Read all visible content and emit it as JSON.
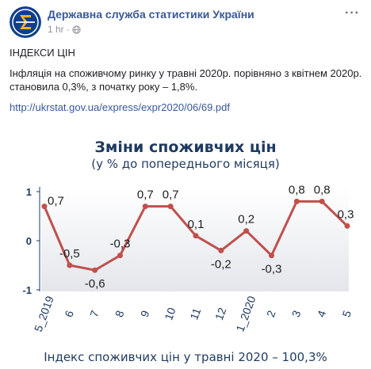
{
  "post": {
    "page_name": "Державна служба статистики України",
    "time": "1 hr",
    "dot": "·",
    "more": "···",
    "heading": "ІНДЕКСИ ЦІН",
    "body": "Інфляція на споживчому ринку у травні 2020р. порівняно з квітнем 2020р. становила 0,3%, з початку року – 1,8%.",
    "link": "http://ukrstat.gov.ua/express/expr2020/06/69.pdf",
    "colors": {
      "link": "#385898",
      "avatar_blue": "#0d3f8c",
      "avatar_gold": "#f2b21e"
    },
    "icons": {
      "globe": "globe-icon",
      "logo": "sigma-logo"
    }
  },
  "chart_data": {
    "type": "line",
    "title": "Зміни споживчих цін",
    "subtitle": "(у % до попереднього місяця)",
    "footer": "Індекс споживчих цін у травні 2020 – 100,3%",
    "categories": [
      "5_2019",
      "6",
      "7",
      "8",
      "9",
      "10",
      "11",
      "12",
      "1_2020",
      "2",
      "3",
      "4",
      "5"
    ],
    "values": [
      0.7,
      -0.5,
      -0.6,
      -0.3,
      0.7,
      0.7,
      0.1,
      -0.2,
      0.2,
      -0.3,
      0.8,
      0.8,
      0.3
    ],
    "value_labels": [
      "0,7",
      "-0,5",
      "-0,6",
      "-0,3",
      "0,7",
      "0,7",
      "0,1",
      "-0,2",
      "0,2",
      "-0,3",
      "0,8",
      "0,8",
      "0,3"
    ],
    "y_ticks": [
      {
        "value": 1,
        "label": "1"
      },
      {
        "value": 0,
        "label": "0"
      },
      {
        "value": -1,
        "label": "-1"
      }
    ],
    "ylim": [
      -1,
      1
    ],
    "grid": false,
    "line_color": "#c0504d",
    "background_color": "#e6e9ee"
  }
}
